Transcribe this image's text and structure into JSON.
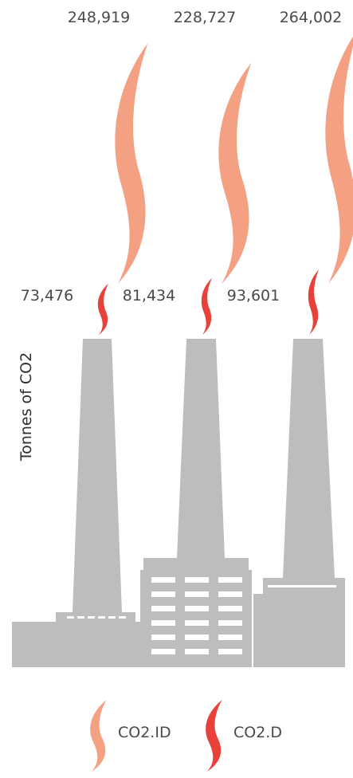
{
  "chart_data": {
    "type": "pictorial",
    "ylabel": "Tonnes of CO2",
    "series": [
      {
        "name": "CO2.ID",
        "color": "#f4a083",
        "values": [
          248919,
          228727,
          264002
        ]
      },
      {
        "name": "CO2.D",
        "color": "#e8413a",
        "values": [
          73476,
          81434,
          93601
        ]
      }
    ],
    "data_labels": {
      "CO2.ID": [
        "248,919",
        "228,727",
        "264,002"
      ],
      "CO2.D": [
        "73,476",
        "81,434",
        "93,601"
      ]
    }
  },
  "legend": {
    "items": [
      {
        "label": "CO2.ID",
        "color": "#f4a083"
      },
      {
        "label": "CO2.D",
        "color": "#e8413a"
      }
    ]
  },
  "factory_color": "#bdbdbd"
}
